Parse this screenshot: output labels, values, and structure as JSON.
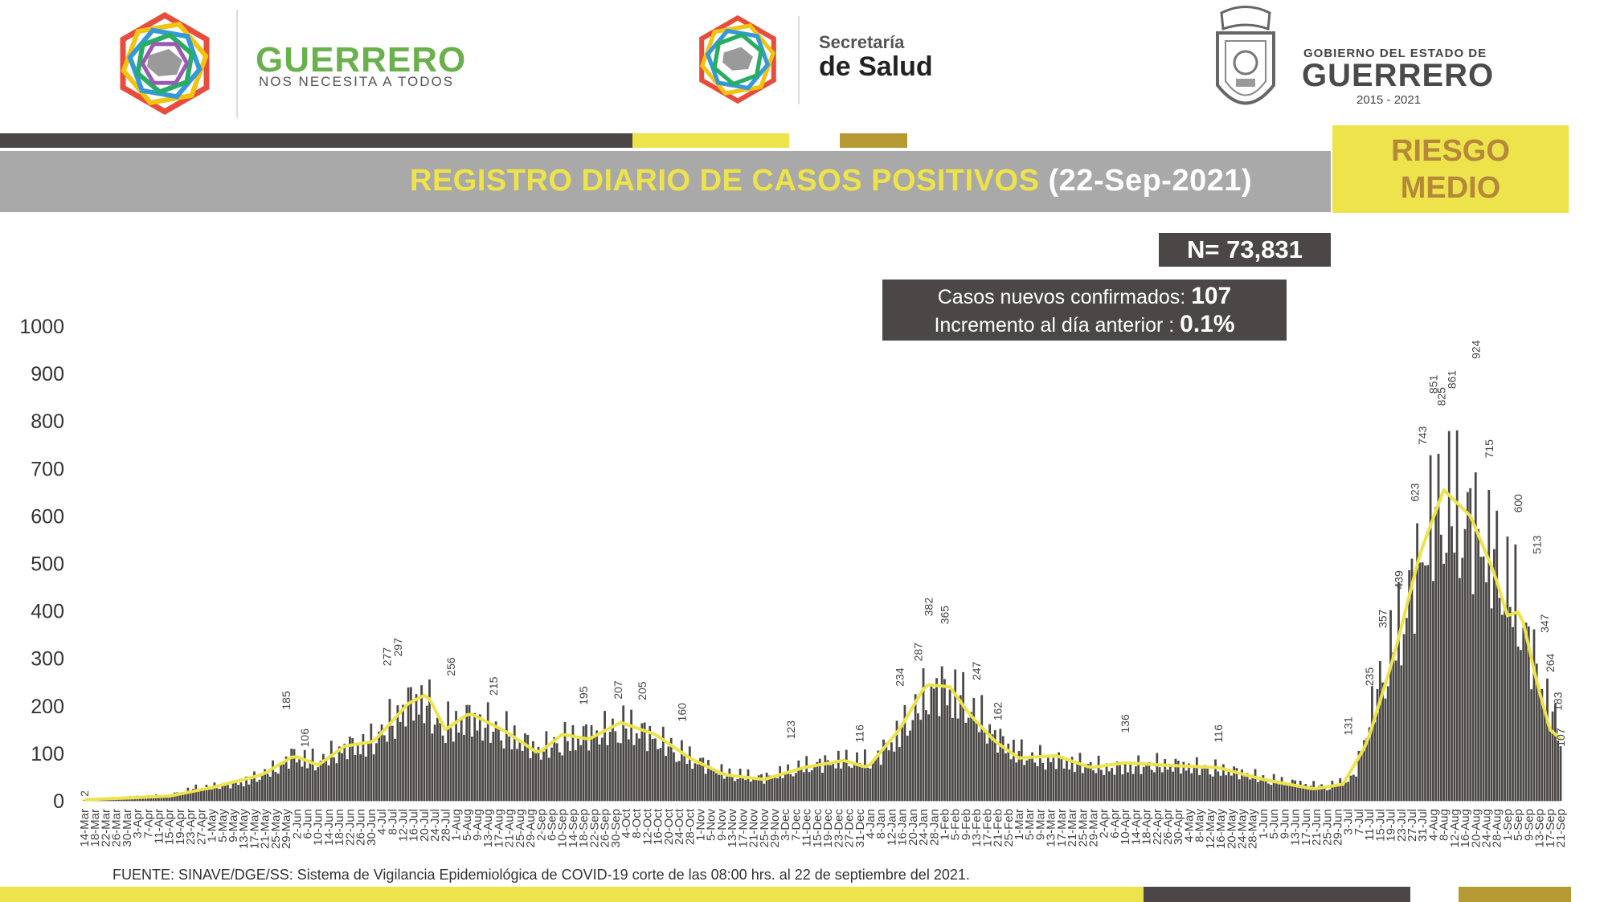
{
  "header": {
    "guerrero_logo": {
      "title": "GUERRERO",
      "tagline": "NOS NECESITA A TODOS"
    },
    "salud_logo": {
      "line1": "Secretaría",
      "line2": "de Salud"
    },
    "gobierno_logo": {
      "line1": "GOBIERNO DEL ESTADO DE",
      "line2": "GUERRERO",
      "years": "2015 - 2021"
    }
  },
  "title_band": {
    "title": "REGISTRO DIARIO DE CASOS POSITIVOS",
    "date": "(22-Sep-2021)"
  },
  "risk": {
    "line1": "RIESGO",
    "line2": "MEDIO"
  },
  "stats": {
    "total": "N= 73,831",
    "new_label": "Casos nuevos confirmados:",
    "new_value": "107",
    "inc_label": "Incremento al día anterior :",
    "inc_value": "0.1%"
  },
  "source_note": "FUENTE: SINAVE/DGE/SS: Sistema de Vigilancia Epidemiológica de COVID-19 corte de las 08:00 hrs. al 22 de septiembre del 2021.",
  "colors": {
    "bars": "#4a4746",
    "moving_average": "#ede34a",
    "accent_gold": "#b59a34",
    "band": "#a9a9a9"
  },
  "chart_data": {
    "type": "bar",
    "title": "REGISTRO DIARIO DE CASOS POSITIVOS",
    "ylim": [
      0,
      1000
    ],
    "yticks": [
      0,
      100,
      200,
      300,
      400,
      500,
      600,
      700,
      800,
      900,
      1000
    ],
    "x_start": "2020-03-14",
    "x_end": "2021-09-21",
    "xtick_labels": [
      "14-Mar",
      "18-Mar",
      "22-Mar",
      "26-Mar",
      "30-Mar",
      "3-Apr",
      "7-Apr",
      "11-Apr",
      "15-Apr",
      "19-Apr",
      "23-Apr",
      "27-Apr",
      "1-May",
      "5-May",
      "9-May",
      "13-May",
      "17-May",
      "21-May",
      "25-May",
      "29-May",
      "2-Jun",
      "6-Jun",
      "10-Jun",
      "14-Jun",
      "18-Jun",
      "22-Jun",
      "26-Jun",
      "30-Jun",
      "4-Jul",
      "8-Jul",
      "12-Jul",
      "16-Jul",
      "20-Jul",
      "24-Jul",
      "28-Jul",
      "1-Aug",
      "5-Aug",
      "9-Aug",
      "13-Aug",
      "17-Aug",
      "21-Aug",
      "25-Aug",
      "29-Aug",
      "2-Sep",
      "6-Sep",
      "10-Sep",
      "14-Sep",
      "18-Sep",
      "22-Sep",
      "26-Sep",
      "30-Sep",
      "4-Oct",
      "8-Oct",
      "12-Oct",
      "16-Oct",
      "20-Oct",
      "24-Oct",
      "28-Oct",
      "1-Nov",
      "5-Nov",
      "9-Nov",
      "13-Nov",
      "17-Nov",
      "21-Nov",
      "25-Nov",
      "29-Nov",
      "3-Dec",
      "7-Dec",
      "11-Dec",
      "15-Dec",
      "19-Dec",
      "23-Dec",
      "27-Dec",
      "31-Dec",
      "4-Jan",
      "8-Jan",
      "12-Jan",
      "16-Jan",
      "20-Jan",
      "24-Jan",
      "28-Jan",
      "1-Feb",
      "5-Feb",
      "9-Feb",
      "13-Feb",
      "17-Feb",
      "21-Feb",
      "25-Feb",
      "1-Mar",
      "5-Mar",
      "9-Mar",
      "13-Mar",
      "17-Mar",
      "21-Mar",
      "25-Mar",
      "29-Mar",
      "2-Apr",
      "6-Apr",
      "10-Apr",
      "14-Apr",
      "18-Apr",
      "22-Apr",
      "26-Apr",
      "30-Apr",
      "4-May",
      "8-May",
      "12-May",
      "16-May",
      "20-May",
      "24-May",
      "28-May",
      "1-Jun",
      "5-Jun",
      "9-Jun",
      "13-Jun",
      "17-Jun",
      "21-Jun",
      "25-Jun",
      "29-Jun",
      "3-Jul",
      "7-Jul",
      "11-Jul",
      "15-Jul",
      "19-Jul",
      "23-Jul",
      "27-Jul",
      "31-Jul",
      "4-Aug",
      "8-Aug",
      "12-Aug",
      "16-Aug",
      "20-Aug",
      "24-Aug",
      "28-Aug",
      "1-Sep",
      "5-Sep",
      "9-Sep",
      "13-Sep",
      "17-Sep",
      "21-Sep"
    ],
    "daily_profile": [
      [
        "2020-03-14",
        2
      ],
      [
        "2020-03-31",
        8
      ],
      [
        "2020-04-15",
        12
      ],
      [
        "2020-04-25",
        28
      ],
      [
        "2020-05-05",
        32
      ],
      [
        "2020-05-15",
        45
      ],
      [
        "2020-05-25",
        70
      ],
      [
        "2020-06-01",
        100
      ],
      [
        "2020-06-10",
        85
      ],
      [
        "2020-06-20",
        115
      ],
      [
        "2020-06-30",
        130
      ],
      [
        "2020-07-08",
        175
      ],
      [
        "2020-07-15",
        215
      ],
      [
        "2020-07-20",
        225
      ],
      [
        "2020-07-26",
        160
      ],
      [
        "2020-08-06",
        180
      ],
      [
        "2020-08-20",
        150
      ],
      [
        "2020-09-01",
        110
      ],
      [
        "2020-09-12",
        135
      ],
      [
        "2020-09-25",
        150
      ],
      [
        "2020-10-05",
        165
      ],
      [
        "2020-10-15",
        135
      ],
      [
        "2020-10-28",
        95
      ],
      [
        "2020-11-10",
        60
      ],
      [
        "2020-11-25",
        50
      ],
      [
        "2020-12-10",
        75
      ],
      [
        "2020-12-25",
        90
      ],
      [
        "2021-01-05",
        85
      ],
      [
        "2021-01-15",
        150
      ],
      [
        "2021-01-27",
        245
      ],
      [
        "2021-02-05",
        240
      ],
      [
        "2021-02-12",
        195
      ],
      [
        "2021-02-22",
        130
      ],
      [
        "2021-03-05",
        95
      ],
      [
        "2021-03-20",
        85
      ],
      [
        "2021-04-05",
        70
      ],
      [
        "2021-04-20",
        80
      ],
      [
        "2021-05-05",
        75
      ],
      [
        "2021-05-20",
        65
      ],
      [
        "2021-06-05",
        45
      ],
      [
        "2021-06-25",
        30
      ],
      [
        "2021-07-05",
        50
      ],
      [
        "2021-07-15",
        260
      ],
      [
        "2021-07-25",
        430
      ],
      [
        "2021-08-03",
        600
      ],
      [
        "2021-08-08",
        655
      ],
      [
        "2021-08-18",
        610
      ],
      [
        "2021-08-28",
        520
      ],
      [
        "2021-09-05",
        420
      ],
      [
        "2021-09-14",
        250
      ],
      [
        "2021-09-21",
        140
      ]
    ],
    "moving_average_profile": [
      [
        "2020-03-14",
        2
      ],
      [
        "2020-04-15",
        10
      ],
      [
        "2020-05-01",
        28
      ],
      [
        "2020-05-20",
        55
      ],
      [
        "2020-06-01",
        95
      ],
      [
        "2020-06-10",
        75
      ],
      [
        "2020-06-20",
        115
      ],
      [
        "2020-07-01",
        125
      ],
      [
        "2020-07-14",
        205
      ],
      [
        "2020-07-21",
        225
      ],
      [
        "2020-07-28",
        150
      ],
      [
        "2020-08-06",
        185
      ],
      [
        "2020-08-20",
        145
      ],
      [
        "2020-09-01",
        100
      ],
      [
        "2020-09-10",
        140
      ],
      [
        "2020-09-20",
        130
      ],
      [
        "2020-10-02",
        165
      ],
      [
        "2020-10-15",
        140
      ],
      [
        "2020-10-28",
        90
      ],
      [
        "2020-11-10",
        55
      ],
      [
        "2020-11-25",
        45
      ],
      [
        "2020-12-10",
        70
      ],
      [
        "2020-12-25",
        85
      ],
      [
        "2021-01-03",
        70
      ],
      [
        "2021-01-15",
        150
      ],
      [
        "2021-01-25",
        245
      ],
      [
        "2021-02-03",
        240
      ],
      [
        "2021-02-10",
        185
      ],
      [
        "2021-02-20",
        125
      ],
      [
        "2021-03-01",
        90
      ],
      [
        "2021-03-15",
        95
      ],
      [
        "2021-03-28",
        70
      ],
      [
        "2021-04-10",
        80
      ],
      [
        "2021-04-25",
        75
      ],
      [
        "2021-05-15",
        70
      ],
      [
        "2021-06-01",
        45
      ],
      [
        "2021-06-20",
        25
      ],
      [
        "2021-07-01",
        35
      ],
      [
        "2021-07-10",
        120
      ],
      [
        "2021-07-20",
        300
      ],
      [
        "2021-07-30",
        520
      ],
      [
        "2021-08-08",
        655
      ],
      [
        "2021-08-18",
        600
      ],
      [
        "2021-08-27",
        480
      ],
      [
        "2021-09-01",
        390
      ],
      [
        "2021-09-06",
        400
      ],
      [
        "2021-09-12",
        250
      ],
      [
        "2021-09-17",
        150
      ],
      [
        "2021-09-21",
        130
      ]
    ],
    "point_labels": [
      [
        "2020-03-14",
        2
      ],
      [
        "2020-06-05",
        106
      ],
      [
        "2020-05-29",
        185
      ],
      [
        "2020-07-06",
        277
      ],
      [
        "2020-07-10",
        297
      ],
      [
        "2020-07-30",
        256
      ],
      [
        "2020-08-15",
        215
      ],
      [
        "2020-09-18",
        195
      ],
      [
        "2020-10-01",
        207
      ],
      [
        "2020-10-10",
        205
      ],
      [
        "2020-10-25",
        160
      ],
      [
        "2020-12-05",
        123
      ],
      [
        "2020-12-31",
        116
      ],
      [
        "2021-01-15",
        234
      ],
      [
        "2021-01-22",
        287
      ],
      [
        "2021-01-26",
        382
      ],
      [
        "2021-02-01",
        365
      ],
      [
        "2021-02-13",
        247
      ],
      [
        "2021-02-21",
        162
      ],
      [
        "2021-04-10",
        136
      ],
      [
        "2021-05-15",
        116
      ],
      [
        "2021-07-03",
        131
      ],
      [
        "2021-07-11",
        235
      ],
      [
        "2021-07-16",
        357
      ],
      [
        "2021-07-22",
        439
      ],
      [
        "2021-07-28",
        623
      ],
      [
        "2021-07-31",
        743
      ],
      [
        "2021-08-04",
        851
      ],
      [
        "2021-08-07",
        825
      ],
      [
        "2021-08-11",
        861
      ],
      [
        "2021-08-20",
        924
      ],
      [
        "2021-08-25",
        715
      ],
      [
        "2021-09-05",
        600
      ],
      [
        "2021-09-12",
        513
      ],
      [
        "2021-09-15",
        347
      ],
      [
        "2021-09-17",
        264
      ],
      [
        "2021-09-20",
        183
      ],
      [
        "2021-09-21",
        107
      ]
    ]
  }
}
